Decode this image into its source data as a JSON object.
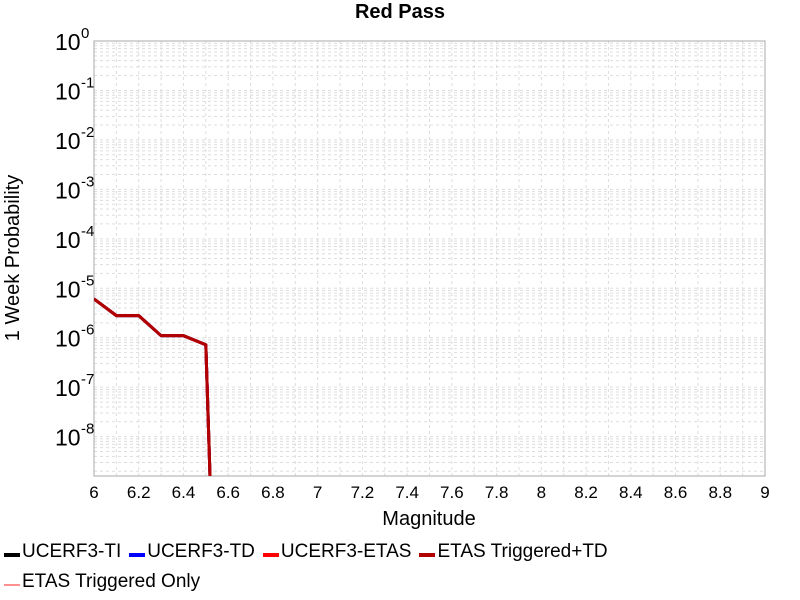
{
  "chart_data": {
    "type": "line",
    "title": "Red Pass",
    "xlabel": "Magnitude",
    "ylabel": "1 Week Probability",
    "yscale": "log",
    "xlim": [
      6,
      9
    ],
    "ylim": [
      1.6e-09,
      1
    ],
    "xticks": [
      "6",
      "6.2",
      "6.4",
      "6.6",
      "6.8",
      "7",
      "7.2",
      "7.4",
      "7.6",
      "7.8",
      "8",
      "8.2",
      "8.4",
      "8.6",
      "8.8",
      "9"
    ],
    "yticks": [
      {
        "value": 1,
        "base": "10",
        "exp": "0"
      },
      {
        "value": 0.1,
        "base": "10",
        "exp": "-1"
      },
      {
        "value": 0.01,
        "base": "10",
        "exp": "-2"
      },
      {
        "value": 0.001,
        "base": "10",
        "exp": "-3"
      },
      {
        "value": 0.0001,
        "base": "10",
        "exp": "-4"
      },
      {
        "value": 1e-05,
        "base": "10",
        "exp": "-5"
      },
      {
        "value": 1e-06,
        "base": "10",
        "exp": "-6"
      },
      {
        "value": 1e-07,
        "base": "10",
        "exp": "-7"
      },
      {
        "value": 1e-08,
        "base": "10",
        "exp": "-8"
      }
    ],
    "grid": true,
    "legend_position": "bottom",
    "series": [
      {
        "name": "UCERF3-TI",
        "color": "#000000",
        "x": [
          6.0,
          6.1,
          6.2,
          6.3,
          6.4,
          6.5,
          6.52
        ],
        "y": [
          6.1e-06,
          2.8e-06,
          2.8e-06,
          1.1e-06,
          1.1e-06,
          7.2e-07,
          1e-09
        ]
      },
      {
        "name": "UCERF3-TD",
        "color": "#0000ff",
        "x": [
          6.0,
          6.1,
          6.2,
          6.3,
          6.4,
          6.5,
          6.52
        ],
        "y": [
          6.1e-06,
          2.8e-06,
          2.8e-06,
          1.1e-06,
          1.1e-06,
          7.2e-07,
          1e-09
        ]
      },
      {
        "name": "UCERF3-ETAS",
        "color": "#ff0000",
        "x": [
          6.0,
          6.1,
          6.2,
          6.3,
          6.4,
          6.5,
          6.52
        ],
        "y": [
          6.1e-06,
          2.8e-06,
          2.8e-06,
          1.1e-06,
          1.1e-06,
          7.2e-07,
          1e-09
        ]
      },
      {
        "name": "ETAS Triggered+TD",
        "color": "#b00000",
        "x": [
          6.0,
          6.1,
          6.2,
          6.3,
          6.4,
          6.5,
          6.52
        ],
        "y": [
          6.1e-06,
          2.8e-06,
          2.8e-06,
          1.1e-06,
          1.1e-06,
          7.2e-07,
          1e-09
        ]
      },
      {
        "name": "ETAS Triggered Only",
        "color": "#ff9090",
        "x": [],
        "y": []
      }
    ]
  }
}
